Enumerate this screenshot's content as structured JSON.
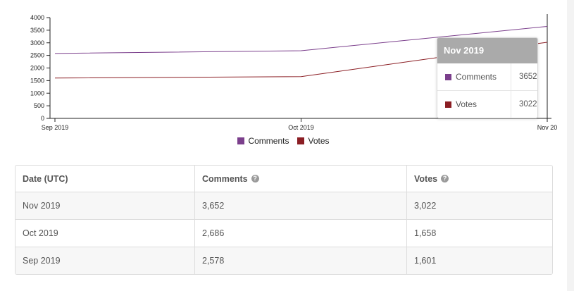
{
  "colors": {
    "comments": "#7b3f8c",
    "votes": "#8b1e24"
  },
  "chart_data": {
    "type": "line",
    "categories": [
      "Sep 2019",
      "Oct 2019",
      "Nov 2019"
    ],
    "series": [
      {
        "name": "Comments",
        "values": [
          2578,
          2686,
          3652
        ],
        "color": "#7b3f8c"
      },
      {
        "name": "Votes",
        "values": [
          1601,
          1658,
          3022
        ],
        "color": "#8b1e24"
      }
    ],
    "ylim": [
      0,
      4000
    ],
    "yticks": [
      0,
      500,
      1000,
      1500,
      2000,
      2500,
      3000,
      3500,
      4000
    ],
    "xtick_labels": [
      "Sep 2019",
      "Oct 2019",
      "Nov 20"
    ],
    "legend_position": "bottom-center",
    "grid": false
  },
  "legend": [
    {
      "label": "Comments",
      "color": "#7b3f8c"
    },
    {
      "label": "Votes",
      "color": "#8b1e24"
    }
  ],
  "tooltip": {
    "title": "Nov 2019",
    "rows": [
      {
        "label": "Comments",
        "value": "3652",
        "color": "#7b3f8c"
      },
      {
        "label": "Votes",
        "value": "3022",
        "color": "#8b1e24"
      }
    ]
  },
  "table": {
    "headers": [
      "Date (UTC)",
      "Comments",
      "Votes"
    ],
    "help_icon": "?",
    "rows": [
      [
        "Nov 2019",
        "3,652",
        "3,022"
      ],
      [
        "Oct 2019",
        "2,686",
        "1,658"
      ],
      [
        "Sep 2019",
        "2,578",
        "1,601"
      ]
    ]
  }
}
